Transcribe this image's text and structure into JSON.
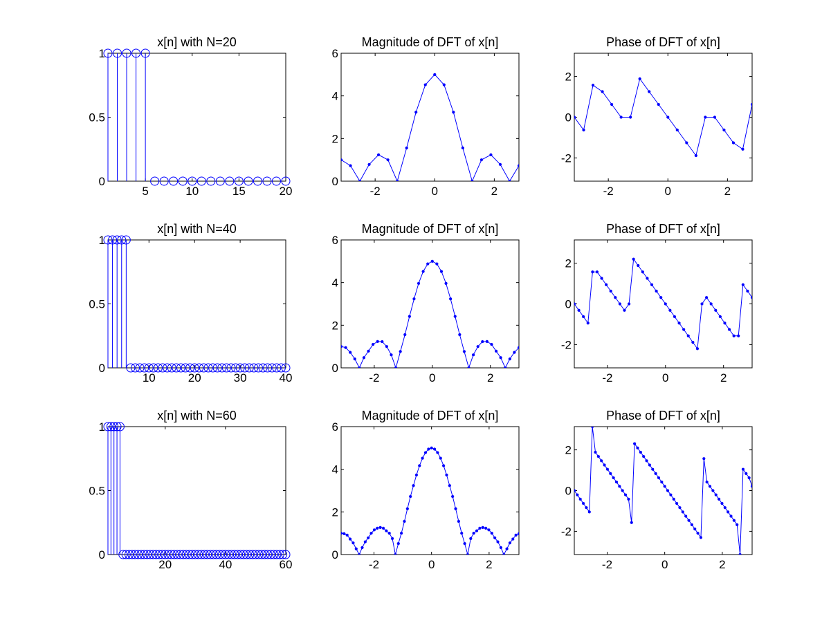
{
  "figure": {
    "background": "#ffffff",
    "series_color": "#0000ff",
    "axis_color": "#000000"
  },
  "chart_data": [
    {
      "type": "stem",
      "marker": "circle",
      "title": "x[n] with N=20",
      "xlim": [
        1,
        20
      ],
      "ylim": [
        0,
        1
      ],
      "xticks": [
        5,
        10,
        15,
        20
      ],
      "yticks": [
        0,
        0.5,
        1
      ],
      "x": [
        1,
        2,
        3,
        4,
        5,
        6,
        7,
        8,
        9,
        10,
        11,
        12,
        13,
        14,
        15,
        16,
        17,
        18,
        19,
        20
      ],
      "y": [
        1,
        1,
        1,
        1,
        1,
        0,
        0,
        0,
        0,
        0,
        0,
        0,
        0,
        0,
        0,
        0,
        0,
        0,
        0,
        0
      ]
    },
    {
      "type": "line",
      "marker": "dot",
      "title": "Magnitude of DFT of x[n]",
      "xlim": [
        -3.1416,
        2.8274
      ],
      "ylim": [
        0,
        6
      ],
      "xticks": [
        -2,
        0,
        2
      ],
      "yticks": [
        0,
        2,
        4,
        6
      ],
      "x": [
        -3.1416,
        -2.8274,
        -2.5133,
        -2.1991,
        -1.885,
        -1.5708,
        -1.2566,
        -0.9425,
        -0.6283,
        -0.3142,
        0,
        0.3142,
        0.6283,
        0.9425,
        1.2566,
        1.5708,
        1.885,
        2.1991,
        2.5133,
        2.8274
      ],
      "y": [
        1,
        0.7265,
        0,
        0.7848,
        1.2361,
        1,
        0,
        1.5582,
        3.2361,
        4.5201,
        5,
        4.5201,
        3.2361,
        1.5582,
        0,
        1,
        1.2361,
        0.7848,
        0,
        0.7265
      ]
    },
    {
      "type": "line",
      "marker": "dot",
      "title": "Phase of DFT of x[n]",
      "xlim": [
        -3.1416,
        2.8274
      ],
      "ylim": [
        -3.1416,
        3.1416
      ],
      "xticks": [
        -2,
        0,
        2
      ],
      "yticks": [
        -2,
        0,
        2
      ],
      "x": [
        -3.1416,
        -2.8274,
        -2.5133,
        -2.1991,
        -1.885,
        -1.5708,
        -1.2566,
        -0.9425,
        -0.6283,
        -0.3142,
        0,
        0.3142,
        0.6283,
        0.9425,
        1.2566,
        1.5708,
        1.885,
        2.1991,
        2.5133,
        2.8274
      ],
      "y": [
        0,
        -0.6283,
        1.5708,
        1.2566,
        0.6283,
        0,
        0,
        1.885,
        1.2566,
        0.6283,
        0,
        -0.6283,
        -1.2566,
        -1.885,
        0,
        0,
        -0.6283,
        -1.2566,
        -1.5708,
        0.6283
      ]
    },
    {
      "type": "stem",
      "marker": "circle",
      "title": "x[n] with N=40",
      "xlim": [
        1,
        40
      ],
      "ylim": [
        0,
        1
      ],
      "xticks": [
        10,
        20,
        30,
        40
      ],
      "yticks": [
        0,
        0.5,
        1
      ],
      "x": [
        1,
        2,
        3,
        4,
        5,
        6,
        7,
        8,
        9,
        10,
        11,
        12,
        13,
        14,
        15,
        16,
        17,
        18,
        19,
        20,
        21,
        22,
        23,
        24,
        25,
        26,
        27,
        28,
        29,
        30,
        31,
        32,
        33,
        34,
        35,
        36,
        37,
        38,
        39,
        40
      ],
      "y": [
        1,
        1,
        1,
        1,
        1,
        0,
        0,
        0,
        0,
        0,
        0,
        0,
        0,
        0,
        0,
        0,
        0,
        0,
        0,
        0,
        0,
        0,
        0,
        0,
        0,
        0,
        0,
        0,
        0,
        0,
        0,
        0,
        0,
        0,
        0,
        0,
        0,
        0,
        0,
        0
      ]
    },
    {
      "type": "line",
      "marker": "dot",
      "title": "Magnitude of DFT of x[n]",
      "xlim": [
        -3.1416,
        2.9845
      ],
      "ylim": [
        0,
        6
      ],
      "xticks": [
        -2,
        0,
        2
      ],
      "yticks": [
        0,
        2,
        4,
        6
      ],
      "x": [
        -3.1416,
        -2.9845,
        -2.8274,
        -2.6704,
        -2.5133,
        -2.3562,
        -2.1991,
        -2.042,
        -1.885,
        -1.7279,
        -1.5708,
        -1.4137,
        -1.2566,
        -1.0996,
        -0.9425,
        -0.7854,
        -0.6283,
        -0.4712,
        -0.3142,
        -0.1571,
        0,
        0.1571,
        0.3142,
        0.4712,
        0.6283,
        0.7854,
        0.9425,
        1.0996,
        1.2566,
        1.4137,
        1.5708,
        1.7279,
        1.885,
        2.042,
        2.1991,
        2.3562,
        2.5133,
        2.6704,
        2.8274,
        2.9845
      ],
      "y": [
        1,
        0.9511,
        0.7265,
        0.4179,
        0,
        0.4784,
        0.7848,
        1.1004,
        1.2361,
        1.2303,
        1,
        0.6094,
        0,
        0.7679,
        1.5582,
        2.4125,
        3.2361,
        3.9614,
        4.5201,
        4.8773,
        5,
        4.8773,
        4.5201,
        3.9614,
        3.2361,
        2.4125,
        1.5582,
        0.7679,
        0,
        0.6094,
        1,
        1.2303,
        1.2361,
        1.1004,
        0.7848,
        0.4784,
        0,
        0.4179,
        0.7265,
        0.9511
      ]
    },
    {
      "type": "line",
      "marker": "dot",
      "title": "Phase of DFT of x[n]",
      "xlim": [
        -3.1416,
        2.9845
      ],
      "ylim": [
        -3.1416,
        3.1416
      ],
      "xticks": [
        -2,
        0,
        2
      ],
      "yticks": [
        -2,
        0,
        2
      ],
      "x": [
        -3.1416,
        -2.9845,
        -2.8274,
        -2.6704,
        -2.5133,
        -2.3562,
        -2.1991,
        -2.042,
        -1.885,
        -1.7279,
        -1.5708,
        -1.4137,
        -1.2566,
        -1.0996,
        -0.9425,
        -0.7854,
        -0.6283,
        -0.4712,
        -0.3142,
        -0.1571,
        0,
        0.1571,
        0.3142,
        0.4712,
        0.6283,
        0.7854,
        0.9425,
        1.0996,
        1.2566,
        1.4137,
        1.5708,
        1.7279,
        1.885,
        2.042,
        2.1991,
        2.3562,
        2.5133,
        2.6704,
        2.8274,
        2.9845
      ],
      "y": [
        0,
        -0.3142,
        -0.6283,
        -0.9425,
        1.5708,
        1.5708,
        1.2566,
        0.9425,
        0.6283,
        0.3142,
        0,
        -0.3142,
        0,
        2.1991,
        1.885,
        1.5708,
        1.2566,
        0.9425,
        0.6283,
        0.3142,
        0,
        -0.3142,
        -0.6283,
        -0.9425,
        -1.2566,
        -1.5708,
        -1.885,
        -2.1991,
        0,
        0.3142,
        0,
        -0.3142,
        -0.6283,
        -0.9425,
        -1.2566,
        -1.5708,
        -1.5708,
        0.9425,
        0.6283,
        0.3142
      ]
    },
    {
      "type": "stem",
      "marker": "circle",
      "title": "x[n] with N=60",
      "xlim": [
        1,
        60
      ],
      "ylim": [
        0,
        1
      ],
      "xticks": [
        20,
        40,
        60
      ],
      "yticks": [
        0,
        0.5,
        1
      ],
      "x": [
        1,
        2,
        3,
        4,
        5,
        6,
        7,
        8,
        9,
        10,
        11,
        12,
        13,
        14,
        15,
        16,
        17,
        18,
        19,
        20,
        21,
        22,
        23,
        24,
        25,
        26,
        27,
        28,
        29,
        30,
        31,
        32,
        33,
        34,
        35,
        36,
        37,
        38,
        39,
        40,
        41,
        42,
        43,
        44,
        45,
        46,
        47,
        48,
        49,
        50,
        51,
        52,
        53,
        54,
        55,
        56,
        57,
        58,
        59,
        60
      ],
      "y": [
        1,
        1,
        1,
        1,
        1,
        0,
        0,
        0,
        0,
        0,
        0,
        0,
        0,
        0,
        0,
        0,
        0,
        0,
        0,
        0,
        0,
        0,
        0,
        0,
        0,
        0,
        0,
        0,
        0,
        0,
        0,
        0,
        0,
        0,
        0,
        0,
        0,
        0,
        0,
        0,
        0,
        0,
        0,
        0,
        0,
        0,
        0,
        0,
        0,
        0,
        0,
        0,
        0,
        0,
        0,
        0,
        0,
        0,
        0,
        0
      ]
    },
    {
      "type": "line",
      "marker": "dot",
      "title": "Magnitude of DFT of x[n]",
      "xlim": [
        -3.1416,
        3.0369
      ],
      "ylim": [
        0,
        6
      ],
      "xticks": [
        -2,
        0,
        2
      ],
      "yticks": [
        0,
        2,
        4,
        6
      ],
      "x": [
        -3.1416,
        -3.0369,
        -2.9322,
        -2.8274,
        -2.7227,
        -2.618,
        -2.5133,
        -2.4086,
        -2.3038,
        -2.1991,
        -2.0944,
        -1.9897,
        -1.885,
        -1.7802,
        -1.6755,
        -1.5708,
        -1.4661,
        -1.3614,
        -1.2566,
        -1.1519,
        -1.0472,
        -0.9425,
        -0.8378,
        -0.733,
        -0.6283,
        -0.5236,
        -0.4189,
        -0.3142,
        -0.2094,
        -0.1047,
        0,
        0.1047,
        0.2094,
        0.3142,
        0.4189,
        0.5236,
        0.6283,
        0.733,
        0.8378,
        0.9425,
        1.0472,
        1.1519,
        1.2566,
        1.3614,
        1.4661,
        1.5708,
        1.6755,
        1.7802,
        1.885,
        1.9897,
        2.0944,
        2.1991,
        2.3038,
        2.4086,
        2.5133,
        2.618,
        2.7227,
        2.8274,
        2.9322,
        3.0369
      ],
      "y": [
        1,
        0.9781,
        0.9135,
        0.7265,
        0.546,
        0.2679,
        0,
        0.326,
        0.5975,
        0.7848,
        1,
        1.158,
        1.2361,
        1.27,
        1.2362,
        1.1135,
        1,
        0.749,
        0,
        0.5158,
        1,
        1.5582,
        2.148,
        2.723,
        3.2361,
        3.732,
        4.168,
        4.5201,
        4.7819,
        4.9452,
        5,
        4.9452,
        4.7819,
        4.5201,
        4.168,
        3.732,
        3.2361,
        2.723,
        2.148,
        1.5582,
        1,
        0.5158,
        0,
        0.749,
        1,
        1.1135,
        1.2362,
        1.27,
        1.2361,
        1.158,
        1,
        0.7848,
        0.5975,
        0.326,
        0,
        0.2679,
        0.546,
        0.7265,
        0.9135,
        0.9781
      ]
    },
    {
      "type": "line",
      "marker": "dot",
      "title": "Phase of DFT of x[n]",
      "xlim": [
        -3.1416,
        3.0369
      ],
      "ylim": [
        -3.1416,
        3.1416
      ],
      "xticks": [
        -2,
        0,
        2
      ],
      "yticks": [
        -2,
        0,
        2
      ],
      "x": [
        -3.1416,
        -3.0369,
        -2.9322,
        -2.8274,
        -2.7227,
        -2.618,
        -2.5133,
        -2.4086,
        -2.3038,
        -2.1991,
        -2.0944,
        -1.9897,
        -1.885,
        -1.7802,
        -1.6755,
        -1.5708,
        -1.4661,
        -1.3614,
        -1.2566,
        -1.1519,
        -1.0472,
        -0.9425,
        -0.8378,
        -0.733,
        -0.6283,
        -0.5236,
        -0.4189,
        -0.3142,
        -0.2094,
        -0.1047,
        0,
        0.1047,
        0.2094,
        0.3142,
        0.4189,
        0.5236,
        0.6283,
        0.733,
        0.8378,
        0.9425,
        1.0472,
        1.1519,
        1.2566,
        1.3614,
        1.4661,
        1.5708,
        1.6755,
        1.7802,
        1.885,
        1.9897,
        2.0944,
        2.1991,
        2.3038,
        2.4086,
        2.5133,
        2.618,
        2.7227,
        2.8274,
        2.9322,
        3.0369
      ],
      "y": [
        0,
        -0.2094,
        -0.4189,
        -0.6283,
        -0.8378,
        -1.0472,
        3.1416,
        1.885,
        1.6755,
        1.4661,
        1.2566,
        1.0472,
        0.8378,
        0.6283,
        0.4189,
        0.2094,
        0,
        -0.2094,
        -0.4189,
        -1.5708,
        2.3038,
        2.0944,
        1.885,
        1.6755,
        1.4661,
        1.2566,
        1.0472,
        0.8378,
        0.6283,
        0.4189,
        0.2094,
        0,
        -0.2094,
        -0.4189,
        -0.6283,
        -0.8378,
        -1.0472,
        -1.2566,
        -1.4661,
        -1.6755,
        -1.885,
        -2.0944,
        -2.3038,
        1.5708,
        0.4189,
        0.2094,
        0,
        -0.2094,
        -0.4189,
        -0.6283,
        -0.8378,
        -1.0472,
        -1.2566,
        -1.4661,
        -1.6755,
        -3.1416,
        1.0472,
        0.8378,
        0.6283,
        0.2094
      ]
    }
  ]
}
